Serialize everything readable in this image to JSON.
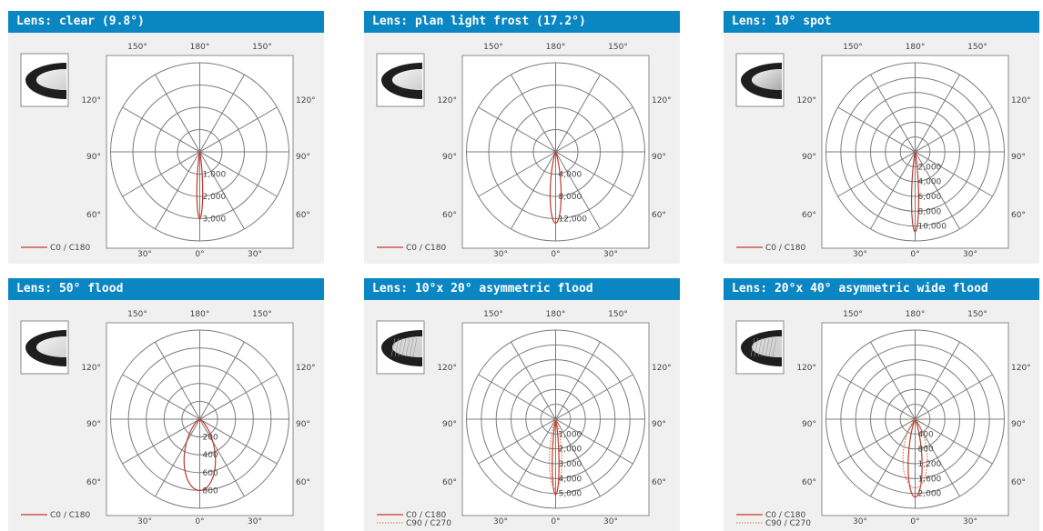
{
  "charts": [
    {
      "title": "Lens: clear (9.8°)",
      "thumb_style": "frost",
      "legend": [
        {
          "label": "C0 / C180",
          "style": "solid"
        }
      ]
    },
    {
      "title": "Lens: plan light frost (17.2°)",
      "thumb_style": "frost",
      "legend": [
        {
          "label": "C0 / C180",
          "style": "solid"
        }
      ]
    },
    {
      "title": "Lens: 10° spot",
      "thumb_style": "spot",
      "legend": [
        {
          "label": "C0 / C180",
          "style": "solid"
        }
      ]
    },
    {
      "title": "Lens: 50° flood",
      "thumb_style": "frost",
      "legend": [
        {
          "label": "C0 / C180",
          "style": "solid"
        }
      ]
    },
    {
      "title": "Lens: 10°x 20° asymmetric flood",
      "thumb_style": "pattern",
      "legend": [
        {
          "label": "C0 / C180",
          "style": "solid"
        },
        {
          "label": "C90 / C270",
          "style": "dotted"
        }
      ]
    },
    {
      "title": "Lens: 20°x 40° asymmetric wide flood",
      "thumb_style": "pattern",
      "legend": [
        {
          "label": "C0 / C180",
          "style": "solid"
        },
        {
          "label": "C90 / C270",
          "style": "dotted"
        }
      ]
    }
  ],
  "chart_data": [
    {
      "type": "polar",
      "title": "Lens: clear (9.8°)",
      "angle_labels": [
        "150°",
        "180°",
        "150°",
        "120°",
        "120°",
        "90°",
        "90°",
        "60°",
        "60°",
        "30°",
        "0°",
        "30°"
      ],
      "radial_ticks": [
        1000,
        2000,
        3000
      ],
      "radial_labels": [
        "1,000",
        "2,000",
        "3,000"
      ],
      "rmax": 4000,
      "series": [
        {
          "name": "C0 / C180",
          "color": "#c0392b",
          "style": "solid",
          "beam_angle": 9.8,
          "peak": 3000
        }
      ]
    },
    {
      "type": "polar",
      "title": "Lens: plan light frost (17.2°)",
      "angle_labels": [
        "150°",
        "180°",
        "150°",
        "120°",
        "120°",
        "90°",
        "90°",
        "60°",
        "60°",
        "30°",
        "0°",
        "30°"
      ],
      "radial_ticks": [
        4000,
        8000,
        12000
      ],
      "radial_labels": [
        "4,000",
        "8,000",
        "12,000"
      ],
      "rmax": 16000,
      "series": [
        {
          "name": "C0 / C180",
          "color": "#c0392b",
          "style": "solid",
          "beam_angle": 17.2,
          "peak": 12800
        }
      ]
    },
    {
      "type": "polar",
      "title": "Lens: 10° spot",
      "angle_labels": [
        "150°",
        "180°",
        "150°",
        "120°",
        "120°",
        "90°",
        "90°",
        "60°",
        "60°",
        "30°",
        "0°",
        "30°"
      ],
      "radial_ticks": [
        2000,
        4000,
        6000,
        8000,
        10000
      ],
      "radial_labels": [
        "2,000",
        "4,000",
        "6,000",
        "8,000",
        "10,000"
      ],
      "rmax": 12000,
      "series": [
        {
          "name": "C0 / C180",
          "color": "#c0392b",
          "style": "solid",
          "beam_angle": 10,
          "peak": 10800
        }
      ]
    },
    {
      "type": "polar",
      "title": "Lens: 50° flood",
      "angle_labels": [
        "150°",
        "180°",
        "150°",
        "120°",
        "120°",
        "90°",
        "90°",
        "60°",
        "60°",
        "30°",
        "0°",
        "30°"
      ],
      "radial_ticks": [
        200,
        400,
        600,
        800
      ],
      "radial_labels": [
        "200",
        "400",
        "600",
        "800"
      ],
      "rmax": 1000,
      "series": [
        {
          "name": "C0 / C180",
          "color": "#c0392b",
          "style": "solid",
          "beam_angle": 50,
          "peak": 800
        }
      ]
    },
    {
      "type": "polar",
      "title": "Lens: 10°x 20° asymmetric flood",
      "angle_labels": [
        "150°",
        "180°",
        "150°",
        "120°",
        "120°",
        "90°",
        "90°",
        "60°",
        "60°",
        "30°",
        "0°",
        "30°"
      ],
      "radial_ticks": [
        1000,
        2000,
        3000,
        4000,
        5000
      ],
      "radial_labels": [
        "1,000",
        "2,000",
        "3,000",
        "4,000",
        "5,000"
      ],
      "rmax": 6000,
      "series": [
        {
          "name": "C0 / C180",
          "color": "#c0392b",
          "style": "solid",
          "beam_angle": 10,
          "peak": 5100
        },
        {
          "name": "C90 / C270",
          "color": "#e36d4d",
          "style": "dotted",
          "beam_angle": 20,
          "peak": 4700
        }
      ]
    },
    {
      "type": "polar",
      "title": "Lens: 20°x 40° asymmetric wide flood",
      "angle_labels": [
        "150°",
        "180°",
        "150°",
        "120°",
        "120°",
        "90°",
        "90°",
        "60°",
        "60°",
        "30°",
        "0°",
        "30°"
      ],
      "radial_ticks": [
        400,
        800,
        1200,
        1600,
        2000
      ],
      "radial_labels": [
        "400",
        "800",
        "1,200",
        "1,600",
        "2,000"
      ],
      "rmax": 2400,
      "series": [
        {
          "name": "C0 / C180",
          "color": "#c0392b",
          "style": "solid",
          "beam_angle": 20,
          "peak": 2100
        },
        {
          "name": "C90 / C270",
          "color": "#e36d4d",
          "style": "dotted",
          "beam_angle": 40,
          "peak": 1850
        }
      ]
    }
  ]
}
